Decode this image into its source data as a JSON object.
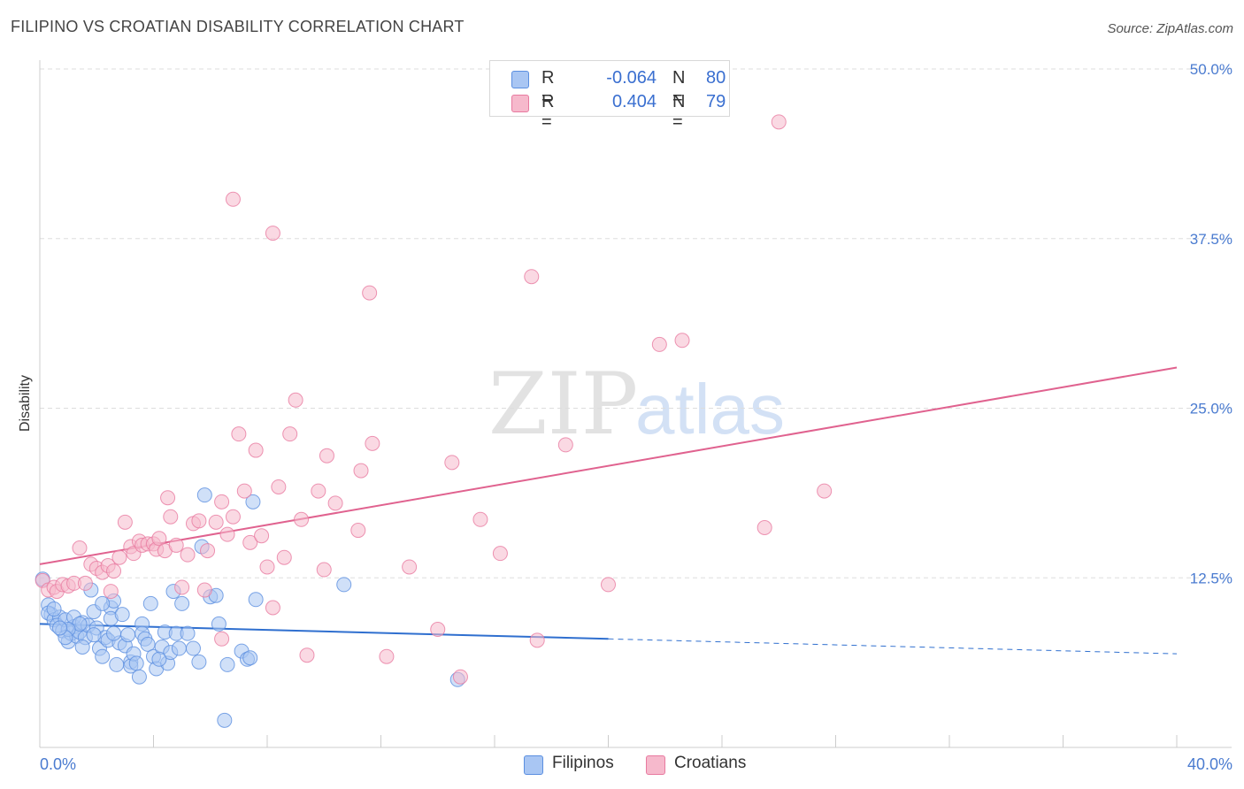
{
  "header": {
    "title": "FILIPINO VS CROATIAN DISABILITY CORRELATION CHART",
    "source": "Source: ZipAtlas.com"
  },
  "legend": {
    "rows": [
      {
        "r_label": "R =",
        "r_value": "-0.064",
        "n_label": "N =",
        "n_value": "80"
      },
      {
        "r_label": "R =",
        "r_value": "0.404",
        "n_label": "N =",
        "n_value": "79"
      }
    ]
  },
  "bottom_legend": [
    "Filipinos",
    "Croatians"
  ],
  "watermark": {
    "zip": "ZIP",
    "atlas": "atlas"
  },
  "colors": {
    "blue": "#5b8fe0",
    "blue_fill": "#a9c6f3",
    "blue_line": "#2f6fcf",
    "pink": "#e87aa0",
    "pink_fill": "#f6b9cc",
    "pink_line": "#e0628f",
    "tick_text": "#4a7bd0",
    "grid": "#dddddd"
  },
  "chart_data": {
    "type": "scatter",
    "title": "FILIPINO VS CROATIAN DISABILITY CORRELATION CHART",
    "xlabel": "",
    "ylabel": "Disability",
    "xlim": [
      0,
      40
    ],
    "ylim": [
      0,
      50
    ],
    "x_tick_labels": [
      "0.0%",
      "40.0%"
    ],
    "y_ticks": [
      12.5,
      25.0,
      37.5,
      50.0
    ],
    "y_tick_labels": [
      "12.5%",
      "25.0%",
      "37.5%",
      "50.0%"
    ],
    "grid": true,
    "legend_position": "top-center",
    "series": [
      {
        "name": "Filipinos",
        "r": -0.064,
        "n": 80,
        "trend": {
          "x": [
            0,
            20
          ],
          "y": [
            9.1,
            8.0
          ],
          "dashed_to": [
            40,
            6.9
          ]
        },
        "points": [
          [
            0.1,
            12.4
          ],
          [
            0.3,
            10.5
          ],
          [
            0.4,
            9.8
          ],
          [
            0.3,
            9.9
          ],
          [
            0.5,
            9.4
          ],
          [
            0.7,
            9.6
          ],
          [
            0.6,
            9.0
          ],
          [
            0.8,
            8.6
          ],
          [
            0.9,
            9.4
          ],
          [
            1.0,
            7.8
          ],
          [
            1.1,
            8.4
          ],
          [
            1.2,
            8.9
          ],
          [
            1.2,
            9.6
          ],
          [
            1.3,
            8.2
          ],
          [
            1.4,
            8.5
          ],
          [
            1.5,
            9.2
          ],
          [
            1.6,
            8.1
          ],
          [
            1.7,
            9.0
          ],
          [
            1.5,
            7.4
          ],
          [
            1.8,
            11.6
          ],
          [
            1.9,
            10.0
          ],
          [
            2.0,
            8.8
          ],
          [
            2.1,
            7.3
          ],
          [
            2.2,
            6.7
          ],
          [
            2.3,
            8.1
          ],
          [
            2.4,
            7.9
          ],
          [
            2.5,
            10.3
          ],
          [
            2.5,
            9.5
          ],
          [
            2.6,
            10.8
          ],
          [
            2.7,
            6.1
          ],
          [
            2.8,
            7.7
          ],
          [
            2.9,
            9.8
          ],
          [
            2.6,
            8.4
          ],
          [
            3.0,
            7.5
          ],
          [
            3.1,
            8.3
          ],
          [
            3.2,
            6.3
          ],
          [
            3.2,
            6.0
          ],
          [
            3.3,
            6.9
          ],
          [
            3.5,
            5.2
          ],
          [
            3.6,
            9.1
          ],
          [
            3.6,
            8.4
          ],
          [
            3.7,
            8.0
          ],
          [
            3.8,
            7.6
          ],
          [
            3.9,
            10.6
          ],
          [
            4.0,
            6.7
          ],
          [
            4.1,
            5.8
          ],
          [
            4.3,
            7.4
          ],
          [
            4.4,
            8.5
          ],
          [
            4.5,
            6.2
          ],
          [
            4.6,
            7.0
          ],
          [
            4.7,
            11.5
          ],
          [
            4.8,
            8.4
          ],
          [
            4.9,
            7.3
          ],
          [
            5.0,
            10.6
          ],
          [
            5.2,
            8.4
          ],
          [
            5.4,
            7.3
          ],
          [
            5.6,
            6.3
          ],
          [
            5.7,
            14.8
          ],
          [
            5.8,
            18.6
          ],
          [
            6.0,
            11.1
          ],
          [
            6.2,
            11.2
          ],
          [
            6.3,
            9.1
          ],
          [
            6.5,
            2.0
          ],
          [
            6.6,
            6.1
          ],
          [
            7.1,
            7.1
          ],
          [
            7.3,
            6.5
          ],
          [
            7.4,
            6.6
          ],
          [
            7.5,
            18.1
          ],
          [
            7.6,
            10.9
          ],
          [
            10.7,
            12.0
          ],
          [
            14.7,
            5.0
          ],
          [
            1.4,
            9.1
          ],
          [
            2.2,
            10.6
          ],
          [
            1.0,
            8.7
          ],
          [
            0.9,
            8.1
          ],
          [
            0.5,
            10.2
          ],
          [
            0.7,
            8.8
          ],
          [
            1.9,
            8.3
          ],
          [
            3.4,
            6.2
          ],
          [
            4.2,
            6.5
          ]
        ]
      },
      {
        "name": "Croatians",
        "r": 0.404,
        "n": 79,
        "trend": {
          "x": [
            0,
            40
          ],
          "y": [
            13.5,
            28.0
          ]
        },
        "points": [
          [
            0.1,
            12.3
          ],
          [
            0.3,
            11.6
          ],
          [
            0.5,
            11.8
          ],
          [
            0.6,
            11.5
          ],
          [
            0.8,
            12.0
          ],
          [
            1.0,
            11.9
          ],
          [
            1.2,
            12.1
          ],
          [
            1.4,
            14.7
          ],
          [
            1.6,
            12.1
          ],
          [
            1.8,
            13.5
          ],
          [
            2.0,
            13.2
          ],
          [
            2.2,
            12.9
          ],
          [
            2.4,
            13.4
          ],
          [
            2.5,
            11.5
          ],
          [
            2.6,
            13.0
          ],
          [
            2.8,
            14.0
          ],
          [
            3.0,
            16.6
          ],
          [
            3.2,
            14.8
          ],
          [
            3.3,
            14.3
          ],
          [
            3.5,
            15.2
          ],
          [
            3.6,
            14.9
          ],
          [
            3.8,
            15.0
          ],
          [
            4.0,
            15.0
          ],
          [
            4.1,
            14.6
          ],
          [
            4.2,
            15.4
          ],
          [
            4.4,
            14.5
          ],
          [
            4.5,
            18.4
          ],
          [
            4.6,
            17.0
          ],
          [
            4.8,
            14.9
          ],
          [
            5.0,
            11.8
          ],
          [
            5.2,
            14.2
          ],
          [
            5.4,
            16.5
          ],
          [
            5.6,
            16.7
          ],
          [
            5.8,
            11.6
          ],
          [
            5.9,
            14.5
          ],
          [
            6.2,
            16.6
          ],
          [
            6.4,
            18.1
          ],
          [
            6.6,
            15.7
          ],
          [
            6.8,
            17.0
          ],
          [
            7.0,
            23.1
          ],
          [
            7.2,
            18.9
          ],
          [
            7.4,
            15.1
          ],
          [
            7.6,
            21.9
          ],
          [
            7.8,
            15.6
          ],
          [
            8.0,
            13.3
          ],
          [
            8.2,
            10.3
          ],
          [
            8.4,
            19.2
          ],
          [
            8.6,
            14.0
          ],
          [
            8.8,
            23.1
          ],
          [
            9.0,
            25.6
          ],
          [
            9.2,
            16.8
          ],
          [
            9.4,
            6.8
          ],
          [
            9.8,
            18.9
          ],
          [
            10.0,
            13.1
          ],
          [
            10.1,
            21.5
          ],
          [
            10.4,
            18.0
          ],
          [
            11.2,
            16.0
          ],
          [
            11.3,
            20.4
          ],
          [
            11.7,
            22.4
          ],
          [
            12.2,
            6.7
          ],
          [
            13.0,
            13.3
          ],
          [
            14.0,
            8.7
          ],
          [
            14.5,
            21.0
          ],
          [
            14.8,
            5.2
          ],
          [
            15.5,
            16.8
          ],
          [
            16.2,
            14.3
          ],
          [
            17.3,
            34.7
          ],
          [
            17.5,
            7.9
          ],
          [
            18.5,
            22.3
          ],
          [
            20.0,
            12.0
          ],
          [
            21.8,
            29.7
          ],
          [
            22.6,
            30.0
          ],
          [
            25.5,
            16.2
          ],
          [
            26.0,
            46.1
          ],
          [
            27.6,
            18.9
          ],
          [
            6.8,
            40.4
          ],
          [
            8.2,
            37.9
          ],
          [
            11.6,
            33.5
          ],
          [
            6.4,
            8.0
          ]
        ]
      }
    ]
  }
}
